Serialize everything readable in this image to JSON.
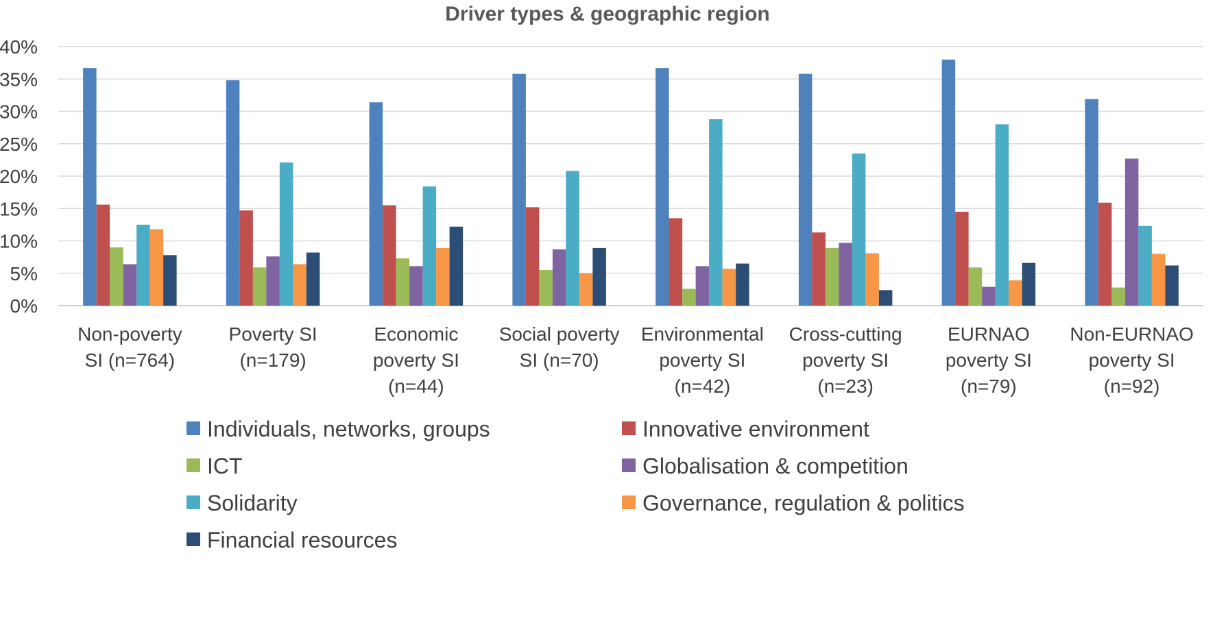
{
  "chart_data": {
    "type": "bar",
    "title": "Driver types & geographic region",
    "xlabel": "",
    "ylabel": "",
    "ylim": [
      0,
      40
    ],
    "yticks": [
      "0%",
      "5%",
      "10%",
      "15%",
      "20%",
      "25%",
      "30%",
      "35%",
      "40%"
    ],
    "ytick_values": [
      0,
      5,
      10,
      15,
      20,
      25,
      30,
      35,
      40
    ],
    "grid": true,
    "legend_position": "bottom",
    "categories": [
      [
        "Non-poverty",
        "SI (n=764)"
      ],
      [
        "Poverty SI",
        "(n=179)"
      ],
      [
        "Economic",
        "poverty SI",
        "(n=44)"
      ],
      [
        "Social poverty",
        "SI (n=70)"
      ],
      [
        "Environmental",
        "poverty SI",
        "(n=42)"
      ],
      [
        "Cross-cutting",
        "poverty SI",
        "(n=23)"
      ],
      [
        "EURNAO",
        "poverty SI",
        "(n=79)"
      ],
      [
        "Non-EURNAO",
        "poverty SI",
        "(n=92)"
      ]
    ],
    "series": [
      {
        "name": "Individuals, networks, groups",
        "color": "#4f81bd",
        "values": [
          36.7,
          34.8,
          31.4,
          35.8,
          36.7,
          35.8,
          38.0,
          31.9
        ]
      },
      {
        "name": "Innovative environment",
        "color": "#c0504d",
        "values": [
          15.6,
          14.7,
          15.5,
          15.2,
          13.5,
          11.3,
          14.5,
          15.9
        ]
      },
      {
        "name": "ICT",
        "color": "#9bbb59",
        "values": [
          9.0,
          5.9,
          7.3,
          5.5,
          2.6,
          8.9,
          5.9,
          2.8
        ]
      },
      {
        "name": "Globalisation & competition",
        "color": "#8064a2",
        "values": [
          6.4,
          7.6,
          6.1,
          8.7,
          6.1,
          9.7,
          2.9,
          22.7
        ]
      },
      {
        "name": "Solidarity",
        "color": "#4bacc6",
        "values": [
          12.5,
          22.1,
          18.4,
          20.8,
          28.8,
          23.5,
          28.0,
          12.3
        ]
      },
      {
        "name": "Governance, regulation & politics",
        "color": "#f79646",
        "values": [
          11.8,
          6.4,
          8.9,
          5.0,
          5.7,
          8.1,
          3.9,
          8.0
        ]
      },
      {
        "name": "Financial resources",
        "color": "#2c4d75",
        "values": [
          7.8,
          8.2,
          12.2,
          8.9,
          6.5,
          2.4,
          6.6,
          6.2
        ]
      }
    ]
  }
}
